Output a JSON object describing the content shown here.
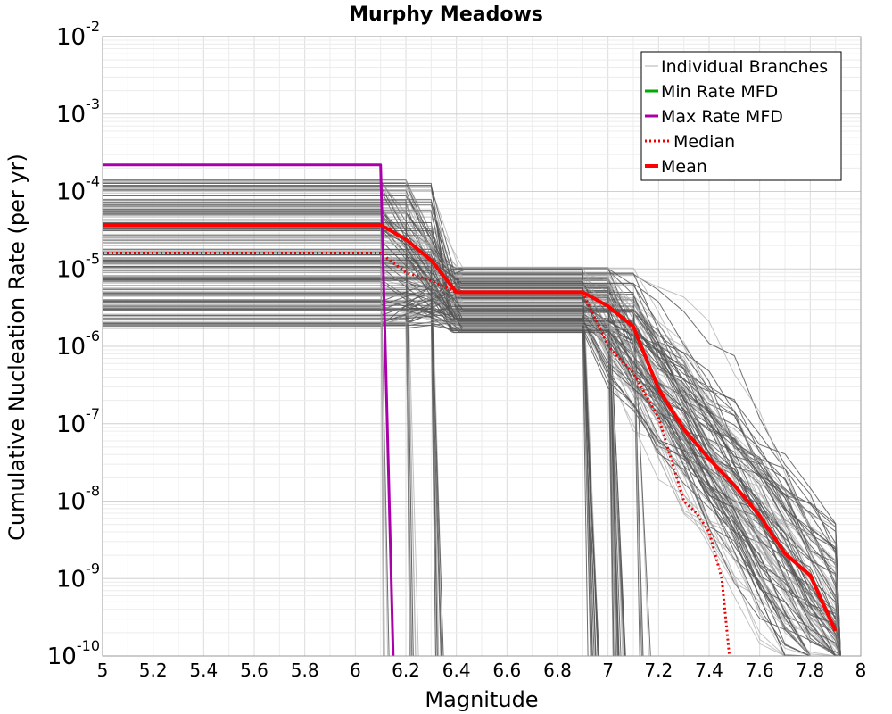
{
  "chart_data": {
    "type": "line",
    "title": "Murphy Meadows",
    "xlabel": "Magnitude",
    "ylabel": "Cumulative Nucleation Rate (per yr)",
    "xlim": [
      5,
      8
    ],
    "ylim": [
      1e-10,
      0.01
    ],
    "yscale": "log",
    "grid": true,
    "legend_position": "top-right",
    "x_ticks": [
      "5",
      "5.2",
      "5.4",
      "5.6",
      "5.8",
      "6",
      "6.2",
      "6.4",
      "6.6",
      "6.8",
      "7",
      "7.2",
      "7.4",
      "7.6",
      "7.8",
      "8"
    ],
    "y_ticks": [
      {
        "base": "10",
        "exp": "-10"
      },
      {
        "base": "10",
        "exp": "-9"
      },
      {
        "base": "10",
        "exp": "-8"
      },
      {
        "base": "10",
        "exp": "-7"
      },
      {
        "base": "10",
        "exp": "-6"
      },
      {
        "base": "10",
        "exp": "-5"
      },
      {
        "base": "10",
        "exp": "-4"
      },
      {
        "base": "10",
        "exp": "-3"
      },
      {
        "base": "10",
        "exp": "-2"
      }
    ],
    "legend": [
      {
        "label": "Individual Branches",
        "color": "#b0b0b0",
        "style": "solid"
      },
      {
        "label": "Min Rate MFD",
        "color": "#00aa00",
        "style": "solid"
      },
      {
        "label": "Max Rate MFD",
        "color": "#aa00aa",
        "style": "solid"
      },
      {
        "label": "Median",
        "color": "#ee0000",
        "style": "dotted"
      },
      {
        "label": "Mean",
        "color": "#ff0000",
        "style": "solid"
      }
    ],
    "series": [
      {
        "name": "Max Rate MFD",
        "color": "#aa00aa",
        "style": "solid",
        "x": [
          5.0,
          6.1,
          6.15
        ],
        "y": [
          0.00022,
          0.00022,
          1e-10
        ]
      },
      {
        "name": "Mean",
        "color": "#ff0000",
        "style": "solid",
        "x": [
          5.0,
          6.1,
          6.2,
          6.3,
          6.4,
          6.9,
          7.0,
          7.1,
          7.2,
          7.3,
          7.4,
          7.5,
          7.6,
          7.7,
          7.8,
          7.9
        ],
        "y": [
          3.7e-05,
          3.7e-05,
          2.4e-05,
          1.3e-05,
          5e-06,
          5e-06,
          3.3e-06,
          1.8e-06,
          2.8e-07,
          8.5e-08,
          3.5e-08,
          1.6e-08,
          6.5e-09,
          2.1e-09,
          1.1e-09,
          2.1e-10
        ]
      },
      {
        "name": "Median",
        "color": "#ee0000",
        "style": "dotted",
        "x": [
          5.0,
          6.1,
          6.2,
          6.3,
          6.4,
          6.9,
          7.0,
          7.1,
          7.2,
          7.3,
          7.35,
          7.4,
          7.45,
          7.48
        ],
        "y": [
          1.6e-05,
          1.6e-05,
          9e-06,
          7e-06,
          5e-06,
          5e-06,
          1e-06,
          4.5e-07,
          1.2e-07,
          1e-08,
          7e-09,
          4e-09,
          1e-09,
          1e-10
        ]
      }
    ]
  }
}
